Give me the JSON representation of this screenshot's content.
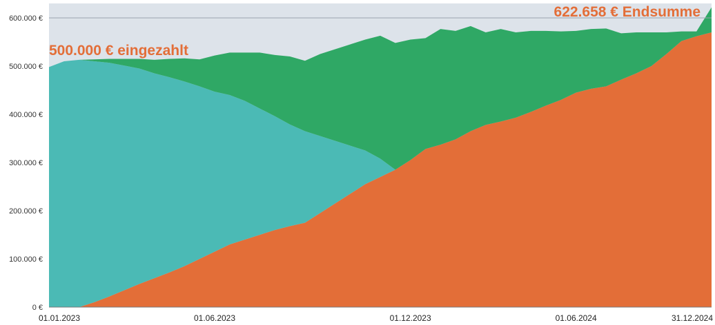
{
  "chart_data": {
    "type": "area",
    "stacked": true,
    "title": "",
    "xlabel": "",
    "ylabel": "",
    "ylim": [
      0,
      630000
    ],
    "y_ticks": [
      0,
      100000,
      200000,
      300000,
      400000,
      500000,
      600000
    ],
    "y_tick_labels": [
      "0 €",
      "100.000 €",
      "200.000 €",
      "300.000 €",
      "400.000 €",
      "500.000 €",
      "600.000 €"
    ],
    "x_tick_labels": [
      "01.01.2023",
      "01.06.2023",
      "01.12.2023",
      "01.06.2024",
      "31.12.2024"
    ],
    "x_tick_positions": [
      0,
      11,
      24,
      35,
      43
    ],
    "x_count": 45,
    "reference_line": 600000,
    "grid": false,
    "legend": "none",
    "colors": {
      "orange": "#e36e38",
      "teal": "#4bbab5",
      "green": "#2fa865",
      "background": "#dde3ea",
      "annotation": "#e36e38"
    },
    "series": [
      {
        "color": "#e36e38",
        "values": [
          0,
          0,
          0,
          10000,
          22000,
          35000,
          48000,
          60000,
          72000,
          85000,
          100000,
          115000,
          130000,
          140000,
          150000,
          160000,
          168000,
          175000,
          195000,
          215000,
          235000,
          255000,
          270000,
          285000,
          305000,
          328000,
          337000,
          348000,
          365000,
          378000,
          385000,
          393000,
          405000,
          418000,
          430000,
          445000,
          453000,
          458000,
          472000,
          485000,
          500000,
          525000,
          552000,
          562000,
          570000
        ]
      },
      {
        "color": "#4bbab5",
        "values": [
          498000,
          510000,
          513000,
          500000,
          485000,
          466000,
          447000,
          425000,
          405000,
          383000,
          358000,
          332000,
          310000,
          288000,
          262000,
          236000,
          211000,
          190000,
          160000,
          130000,
          100000,
          70000,
          38000,
          0,
          0,
          0,
          0,
          0,
          0,
          0,
          0,
          0,
          0,
          0,
          0,
          0,
          0,
          0,
          0,
          0,
          0,
          0,
          0,
          0,
          0
        ]
      },
      {
        "color": "#2fa865",
        "values": [
          0,
          0,
          0,
          4000,
          8000,
          14000,
          20000,
          28000,
          38000,
          48000,
          56000,
          75000,
          88000,
          100000,
          116000,
          127000,
          141000,
          146000,
          170000,
          190000,
          210000,
          230000,
          255000,
          263000,
          250000,
          230000,
          240000,
          225000,
          218000,
          192000,
          192000,
          177000,
          168000,
          155000,
          142000,
          128000,
          124000,
          120000,
          96000,
          85000,
          70000,
          45000,
          20000,
          10000,
          52000
        ]
      }
    ],
    "annotations": [
      {
        "text": "500.000 € eingezahlt",
        "x": 0,
        "y": 500000
      },
      {
        "text": "622.658 € Endsumme",
        "x": 44,
        "y": 622658
      }
    ]
  }
}
